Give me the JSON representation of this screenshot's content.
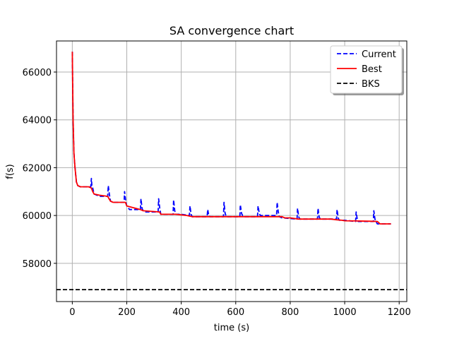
{
  "chart_data": {
    "type": "line",
    "title": "SA convergence chart",
    "xlabel": "time (s)",
    "ylabel": "f(s)",
    "xlim": [
      -58,
      1228
    ],
    "ylim": [
      56400,
      67300
    ],
    "xticks": [
      0,
      200,
      400,
      600,
      800,
      1000,
      1200
    ],
    "yticks": [
      58000,
      60000,
      62000,
      64000,
      66000
    ],
    "grid": true,
    "legend_position": "top-right",
    "colors": {
      "current": "#0000ff",
      "best": "#ff0000",
      "bks": "#000000"
    },
    "series": [
      {
        "name": "Current",
        "style": "dashed",
        "color": "#0000ff",
        "x": [
          0,
          1,
          3,
          6,
          10,
          15,
          20,
          30,
          40,
          68,
          70,
          72,
          75,
          80,
          100,
          130,
          132,
          136,
          140,
          150,
          190,
          192,
          196,
          200,
          210,
          250,
          252,
          256,
          260,
          270,
          315,
          317,
          321,
          325,
          330,
          370,
          372,
          376,
          380,
          400,
          430,
          432,
          436,
          440,
          495,
          497,
          501,
          505,
          555,
          557,
          561,
          565,
          570,
          615,
          617,
          621,
          625,
          630,
          680,
          682,
          686,
          690,
          750,
          752,
          756,
          760,
          770,
          825,
          827,
          831,
          835,
          840,
          900,
          902,
          906,
          910,
          970,
          972,
          976,
          980,
          1000,
          1040,
          1042,
          1046,
          1050,
          1060,
          1105,
          1107,
          1111,
          1115,
          1120,
          1130,
          1170
        ],
        "y": [
          66850,
          65800,
          64000,
          62600,
          62000,
          61400,
          61250,
          61200,
          61200,
          61200,
          61550,
          61250,
          61150,
          60900,
          60800,
          60800,
          61250,
          60900,
          60600,
          60550,
          60550,
          61000,
          60600,
          60400,
          60250,
          60250,
          60700,
          60300,
          60200,
          60150,
          60150,
          60700,
          60300,
          60050,
          60050,
          60050,
          60650,
          60200,
          60050,
          60050,
          60000,
          60400,
          60050,
          59950,
          59950,
          60250,
          60000,
          59950,
          59950,
          60550,
          60100,
          59950,
          59950,
          59950,
          60450,
          60100,
          60000,
          59950,
          59950,
          60400,
          60100,
          60000,
          60000,
          60550,
          60150,
          59950,
          59900,
          59850,
          60300,
          59950,
          59850,
          59850,
          59850,
          60300,
          59950,
          59850,
          59850,
          60250,
          59900,
          59800,
          59800,
          59750,
          60150,
          59850,
          59750,
          59750,
          59750,
          60200,
          59850,
          59750,
          59650,
          59650,
          59650
        ]
      },
      {
        "name": "Best",
        "style": "solid",
        "color": "#ff0000",
        "x": [
          0,
          1,
          3,
          6,
          10,
          15,
          20,
          30,
          60,
          70,
          75,
          80,
          100,
          130,
          135,
          140,
          150,
          195,
          200,
          250,
          260,
          320,
          325,
          375,
          380,
          420,
          440,
          480,
          500,
          550,
          600,
          650,
          700,
          750,
          770,
          780,
          800,
          830,
          850,
          900,
          950,
          970,
          990,
          1000,
          1050,
          1100,
          1120,
          1130,
          1170
        ],
        "y": [
          66850,
          65700,
          64000,
          62600,
          62000,
          61400,
          61250,
          61200,
          61200,
          61150,
          61000,
          60900,
          60850,
          60800,
          60700,
          60600,
          60550,
          60550,
          60400,
          60250,
          60200,
          60150,
          60050,
          60050,
          60050,
          60000,
          59950,
          59950,
          59950,
          59950,
          59950,
          59950,
          59950,
          59950,
          59950,
          59900,
          59900,
          59850,
          59850,
          59850,
          59850,
          59820,
          59800,
          59780,
          59770,
          59760,
          59750,
          59650,
          59650
        ]
      },
      {
        "name": "BKS",
        "style": "dashed",
        "color": "#000000",
        "x": [
          -58,
          1228
        ],
        "y": [
          56900,
          56900
        ]
      }
    ]
  }
}
